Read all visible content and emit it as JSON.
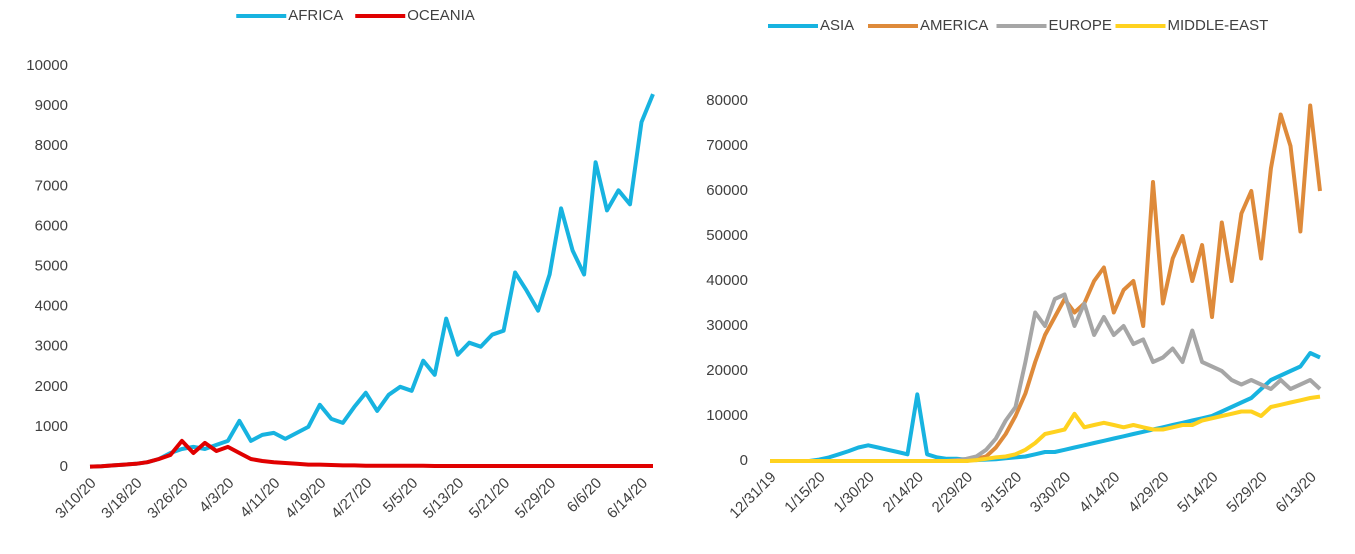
{
  "chart_data": [
    {
      "type": "line",
      "categories": [
        "3/10/20",
        null,
        null,
        null,
        "3/18/20",
        null,
        null,
        null,
        "3/26/20",
        null,
        null,
        null,
        "4/3/20",
        null,
        null,
        null,
        "4/11/20",
        null,
        null,
        null,
        "4/19/20",
        null,
        null,
        null,
        "4/27/20",
        null,
        null,
        null,
        "5/5/20",
        null,
        null,
        null,
        "5/13/20",
        null,
        null,
        null,
        "5/21/20",
        null,
        null,
        null,
        "5/29/20",
        null,
        null,
        null,
        "6/6/20",
        null,
        null,
        null,
        "6/14/20",
        null
      ],
      "series": [
        {
          "name": "AFRICA",
          "color": "#17b3e0",
          "values": [
            10,
            20,
            40,
            60,
            80,
            120,
            200,
            350,
            450,
            500,
            450,
            550,
            650,
            1150,
            650,
            800,
            850,
            700,
            850,
            1000,
            1550,
            1200,
            1100,
            1500,
            1850,
            1400,
            1800,
            2000,
            1900,
            2650,
            2300,
            3700,
            2800,
            3100,
            3000,
            3300,
            3400,
            4850,
            4400,
            3900,
            4800,
            6450,
            5400,
            4800,
            7600,
            6400,
            6900,
            6550,
            8600,
            9300
          ]
        },
        {
          "name": "OCEANIA",
          "color": "#e00000",
          "values": [
            10,
            20,
            40,
            60,
            80,
            120,
            200,
            300,
            650,
            350,
            600,
            400,
            500,
            350,
            200,
            150,
            120,
            100,
            80,
            60,
            60,
            50,
            40,
            40,
            30,
            30,
            30,
            30,
            30,
            30,
            25,
            25,
            25,
            25,
            25,
            25,
            25,
            25,
            25,
            25,
            25,
            25,
            25,
            25,
            25,
            25,
            25,
            25,
            25,
            25
          ]
        }
      ],
      "ylim": [
        0,
        10000
      ],
      "yticks": [
        0,
        1000,
        2000,
        3000,
        4000,
        5000,
        6000,
        7000,
        8000,
        9000,
        10000
      ],
      "grid": false,
      "legend": "top"
    },
    {
      "type": "line",
      "categories": [
        "12/31/19",
        null,
        null,
        null,
        null,
        "1/15/20",
        null,
        null,
        null,
        null,
        "1/30/20",
        null,
        null,
        null,
        null,
        "2/14/20",
        null,
        null,
        null,
        null,
        "2/29/20",
        null,
        null,
        null,
        null,
        "3/15/20",
        null,
        null,
        null,
        null,
        "3/30/20",
        null,
        null,
        null,
        null,
        "4/14/20",
        null,
        null,
        null,
        null,
        "4/29/20",
        null,
        null,
        null,
        null,
        "5/14/20",
        null,
        null,
        null,
        null,
        "5/29/20",
        null,
        null,
        null,
        null,
        "6/13/20",
        null
      ],
      "series": [
        {
          "name": "ASIA",
          "color": "#17b3e0",
          "values": [
            0,
            0,
            0,
            0,
            0,
            300,
            800,
            1500,
            2200,
            3000,
            3500,
            3000,
            2500,
            2000,
            1500,
            14800,
            1500,
            800,
            500,
            500,
            300,
            200,
            300,
            400,
            600,
            800,
            1000,
            1500,
            2000,
            2000,
            2500,
            3000,
            3500,
            4000,
            4500,
            5000,
            5500,
            6000,
            6500,
            7000,
            7500,
            8000,
            8500,
            9000,
            9500,
            10000,
            11000,
            12000,
            13000,
            14000,
            16000,
            18000,
            19000,
            20000,
            21000,
            24000,
            23000
          ]
        },
        {
          "name": "AMERICA",
          "color": "#de8a3a",
          "values": [
            0,
            0,
            0,
            0,
            0,
            0,
            0,
            0,
            0,
            0,
            0,
            0,
            0,
            0,
            0,
            0,
            0,
            0,
            0,
            0,
            0,
            500,
            1000,
            3000,
            6000,
            10000,
            15000,
            22000,
            28000,
            32000,
            36000,
            33000,
            35000,
            40000,
            43000,
            33000,
            38000,
            40000,
            30000,
            62000,
            35000,
            45000,
            50000,
            40000,
            48000,
            32000,
            53000,
            40000,
            55000,
            60000,
            45000,
            65000,
            77000,
            70000,
            51000,
            79000,
            60000
          ]
        },
        {
          "name": "EUROPE",
          "color": "#a6a6a6",
          "values": [
            0,
            0,
            0,
            0,
            0,
            0,
            0,
            0,
            0,
            0,
            0,
            0,
            0,
            0,
            0,
            0,
            0,
            0,
            0,
            200,
            500,
            1000,
            2500,
            5000,
            9000,
            12000,
            22000,
            33000,
            30000,
            36000,
            37000,
            30000,
            35000,
            28000,
            32000,
            28000,
            30000,
            26000,
            27000,
            22000,
            23000,
            25000,
            22000,
            29000,
            22000,
            21000,
            20000,
            18000,
            17000,
            18000,
            17000,
            16000,
            18000,
            16000,
            17000,
            18000,
            16000
          ]
        },
        {
          "name": "MIDDLE-EAST",
          "color": "#ffd21f",
          "values": [
            0,
            0,
            0,
            0,
            0,
            0,
            0,
            0,
            0,
            0,
            0,
            0,
            0,
            0,
            0,
            0,
            0,
            0,
            0,
            0,
            0,
            200,
            500,
            800,
            1000,
            1500,
            2500,
            4000,
            6000,
            6500,
            7000,
            10500,
            7500,
            8000,
            8500,
            8000,
            7500,
            8000,
            7500,
            7000,
            7000,
            7500,
            8000,
            8000,
            9000,
            9500,
            10000,
            10500,
            11000,
            11000,
            10000,
            12000,
            12500,
            13000,
            13500,
            14000,
            14300
          ]
        }
      ],
      "ylim": [
        0,
        80000
      ],
      "yticks": [
        0,
        10000,
        20000,
        30000,
        40000,
        50000,
        60000,
        70000,
        80000
      ],
      "grid": false,
      "legend": "top"
    }
  ]
}
